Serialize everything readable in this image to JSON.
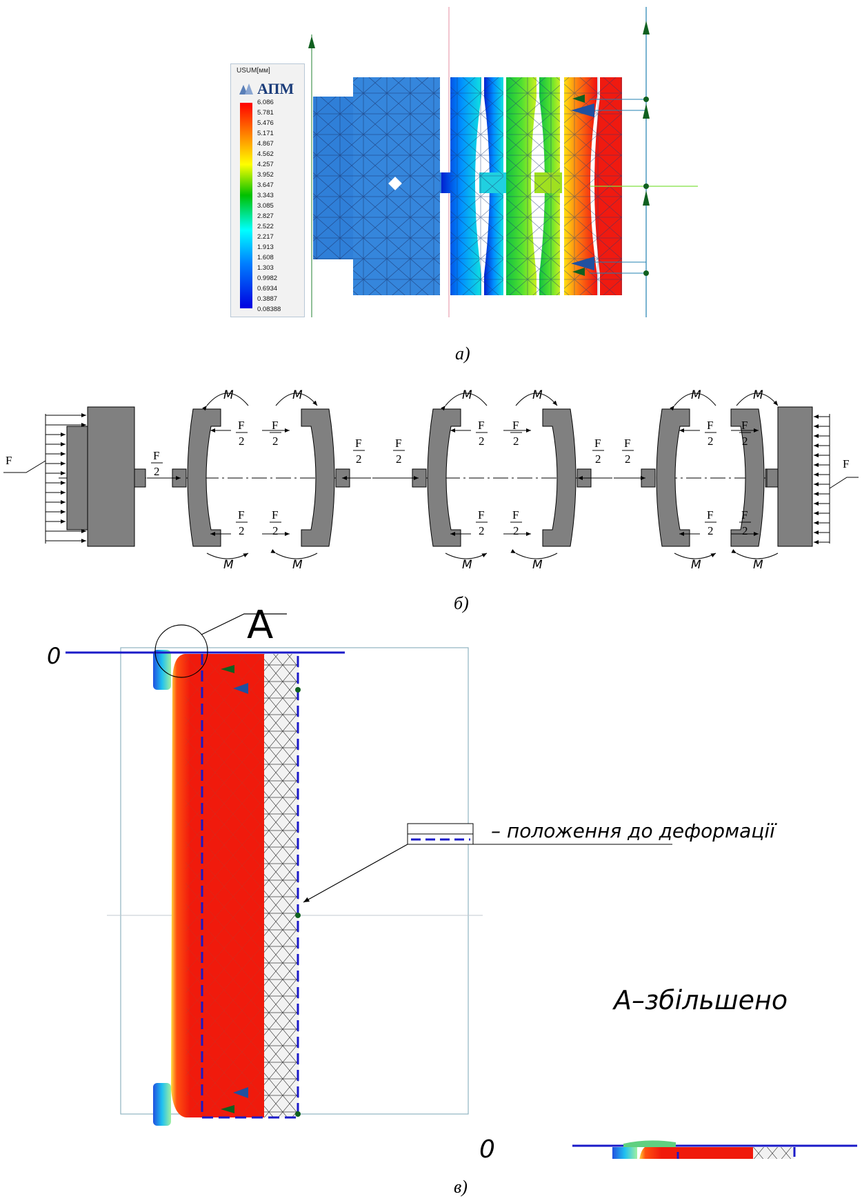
{
  "panel_a": {
    "legend_title": "USUM[мм]",
    "legend_logo": "АПМ",
    "legend_values": [
      "6.086",
      "5.781",
      "5.476",
      "5.171",
      "4.867",
      "4.562",
      "4.257",
      "3.952",
      "3.647",
      "3.343",
      "3.085",
      "2.827",
      "2.522",
      "2.217",
      "1.913",
      "1.608",
      "1.303",
      "0.9982",
      "0.6934",
      "0.3887",
      "0.08388"
    ],
    "caption": "а)"
  },
  "panel_b": {
    "force_label": "F",
    "half_num": "F",
    "half_den": "2",
    "moment_label": "M",
    "caption": "б)"
  },
  "panel_c": {
    "section_letter": "A",
    "baseline_label": "0",
    "legend_text": "– положення до деформації",
    "zoom_title": "А–збільшено",
    "zoom_baseline": "0",
    "caption": "в)"
  },
  "colors": {
    "part_gray": "#808080",
    "mesh_blue": "#2f7fd8",
    "hot_red": "#f01a0c",
    "outline_blue": "#1a1ac8"
  }
}
